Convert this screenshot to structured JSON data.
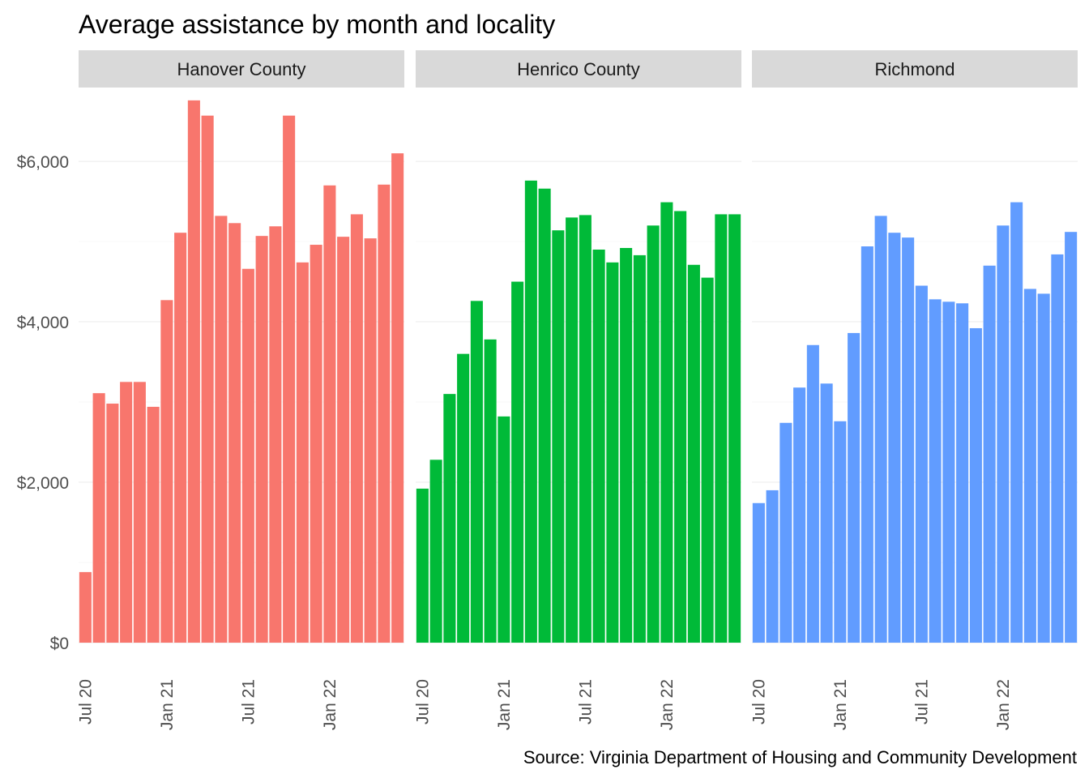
{
  "chart_data": {
    "type": "bar",
    "title": "Average assistance by month and locality",
    "caption": "Source: Virginia Department of Housing and Community Development",
    "xlabel": "",
    "ylabel": "",
    "ylim": [
      0,
      6900
    ],
    "y_ticks": [
      0,
      2000,
      4000,
      6000
    ],
    "y_tick_labels": [
      "$0",
      "$2,000",
      "$4,000",
      "$6,000"
    ],
    "x_tick_labels": [
      "Jul 20",
      "Jan 21",
      "Jul 21",
      "Jan 22"
    ],
    "x_tick_indices": [
      0,
      6,
      12,
      18
    ],
    "grid": true,
    "legend": "none",
    "categories": [
      "Jul 2020",
      "Aug 2020",
      "Sep 2020",
      "Oct 2020",
      "Nov 2020",
      "Dec 2020",
      "Jan 2021",
      "Feb 2021",
      "Mar 2021",
      "Apr 2021",
      "May 2021",
      "Jun 2021",
      "Jul 2021",
      "Aug 2021",
      "Sep 2021",
      "Oct 2021",
      "Nov 2021",
      "Dec 2021",
      "Jan 2022",
      "Feb 2022",
      "Mar 2022",
      "Apr 2022",
      "May 2022",
      "Jun 2022"
    ],
    "series": [
      {
        "name": "Hanover County",
        "color": "#F8766D",
        "values": [
          880,
          3110,
          2980,
          3250,
          3250,
          2940,
          4270,
          5110,
          6760,
          6570,
          5320,
          5230,
          4660,
          5070,
          5190,
          6570,
          4740,
          4960,
          5700,
          5060,
          5340,
          5040,
          5710,
          6100
        ]
      },
      {
        "name": "Henrico County",
        "color": "#00BA38",
        "values": [
          1920,
          2280,
          3100,
          3600,
          4260,
          3780,
          2820,
          4500,
          5760,
          5660,
          5140,
          5300,
          5330,
          4900,
          4740,
          4920,
          4830,
          5200,
          5490,
          5380,
          4710,
          4550,
          5340,
          5340
        ]
      },
      {
        "name": "Richmond",
        "color": "#619CFF",
        "values": [
          1740,
          1900,
          2740,
          3180,
          3710,
          3230,
          2760,
          3860,
          4940,
          5320,
          5110,
          5050,
          4450,
          4280,
          4250,
          4230,
          3920,
          4700,
          5200,
          5490,
          4410,
          4350,
          4840,
          5120
        ]
      }
    ]
  }
}
